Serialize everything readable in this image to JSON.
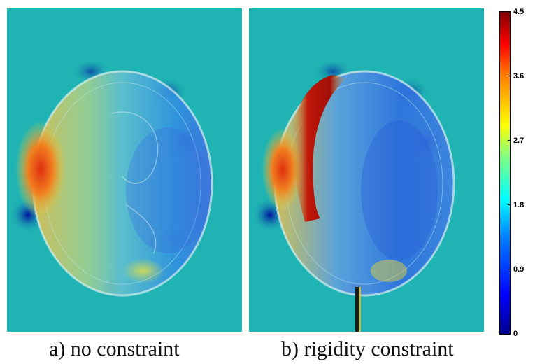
{
  "panels": {
    "a": {
      "caption": "a) no constraint"
    },
    "b": {
      "caption": "b) rigidity constraint"
    }
  },
  "colorbar": {
    "min": 0,
    "max": 4.5,
    "ticks": [
      "4.5",
      "3.6",
      "2.7",
      "1.8",
      "0.9",
      "0"
    ],
    "colormap": "jet"
  },
  "colors": {
    "background_field": "#1fb3b3",
    "low": "#00008f",
    "high": "#800000"
  }
}
